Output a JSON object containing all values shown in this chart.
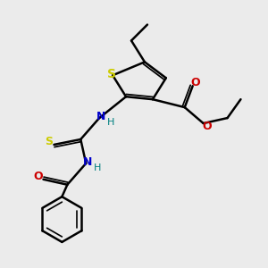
{
  "bg_color": "#ebebeb",
  "bond_color": "#000000",
  "S_color": "#cccc00",
  "N_color": "#0000cc",
  "O_color": "#cc0000",
  "H_color": "#008080",
  "thioS_color": "#cccc00",
  "figsize": [
    3.0,
    3.0
  ],
  "dpi": 100,
  "xlim": [
    0,
    10
  ],
  "ylim": [
    0,
    10
  ]
}
